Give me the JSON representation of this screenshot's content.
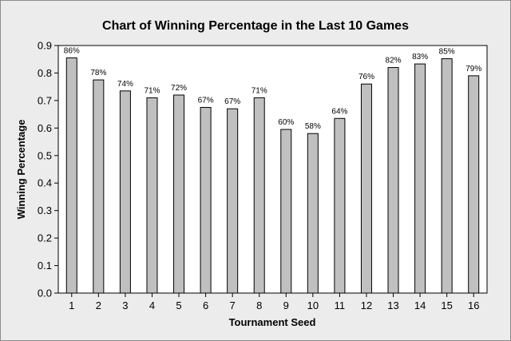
{
  "chart_data": {
    "type": "bar",
    "title": "Chart of Winning Percentage in the Last 10 Games",
    "xlabel": "Tournament Seed",
    "ylabel": "Winning Percentage",
    "categories": [
      "1",
      "2",
      "3",
      "4",
      "5",
      "6",
      "7",
      "8",
      "9",
      "10",
      "11",
      "12",
      "13",
      "14",
      "15",
      "16"
    ],
    "values": [
      0.855,
      0.775,
      0.735,
      0.71,
      0.72,
      0.675,
      0.67,
      0.71,
      0.595,
      0.58,
      0.635,
      0.76,
      0.82,
      0.833,
      0.852,
      0.79
    ],
    "data_labels": [
      "86%",
      "78%",
      "74%",
      "71%",
      "72%",
      "67%",
      "67%",
      "71%",
      "60%",
      "58%",
      "64%",
      "76%",
      "82%",
      "83%",
      "85%",
      "79%"
    ],
    "ylim": [
      0,
      0.9
    ],
    "yticks": [
      "0.0",
      "0.1",
      "0.2",
      "0.3",
      "0.4",
      "0.5",
      "0.6",
      "0.7",
      "0.8",
      "0.9"
    ],
    "grid": false,
    "colors": {
      "bar_fill": "#c0c0c0",
      "bar_stroke": "#000000",
      "plot_background": "#ffffff",
      "frame_background": "#ececec"
    }
  }
}
